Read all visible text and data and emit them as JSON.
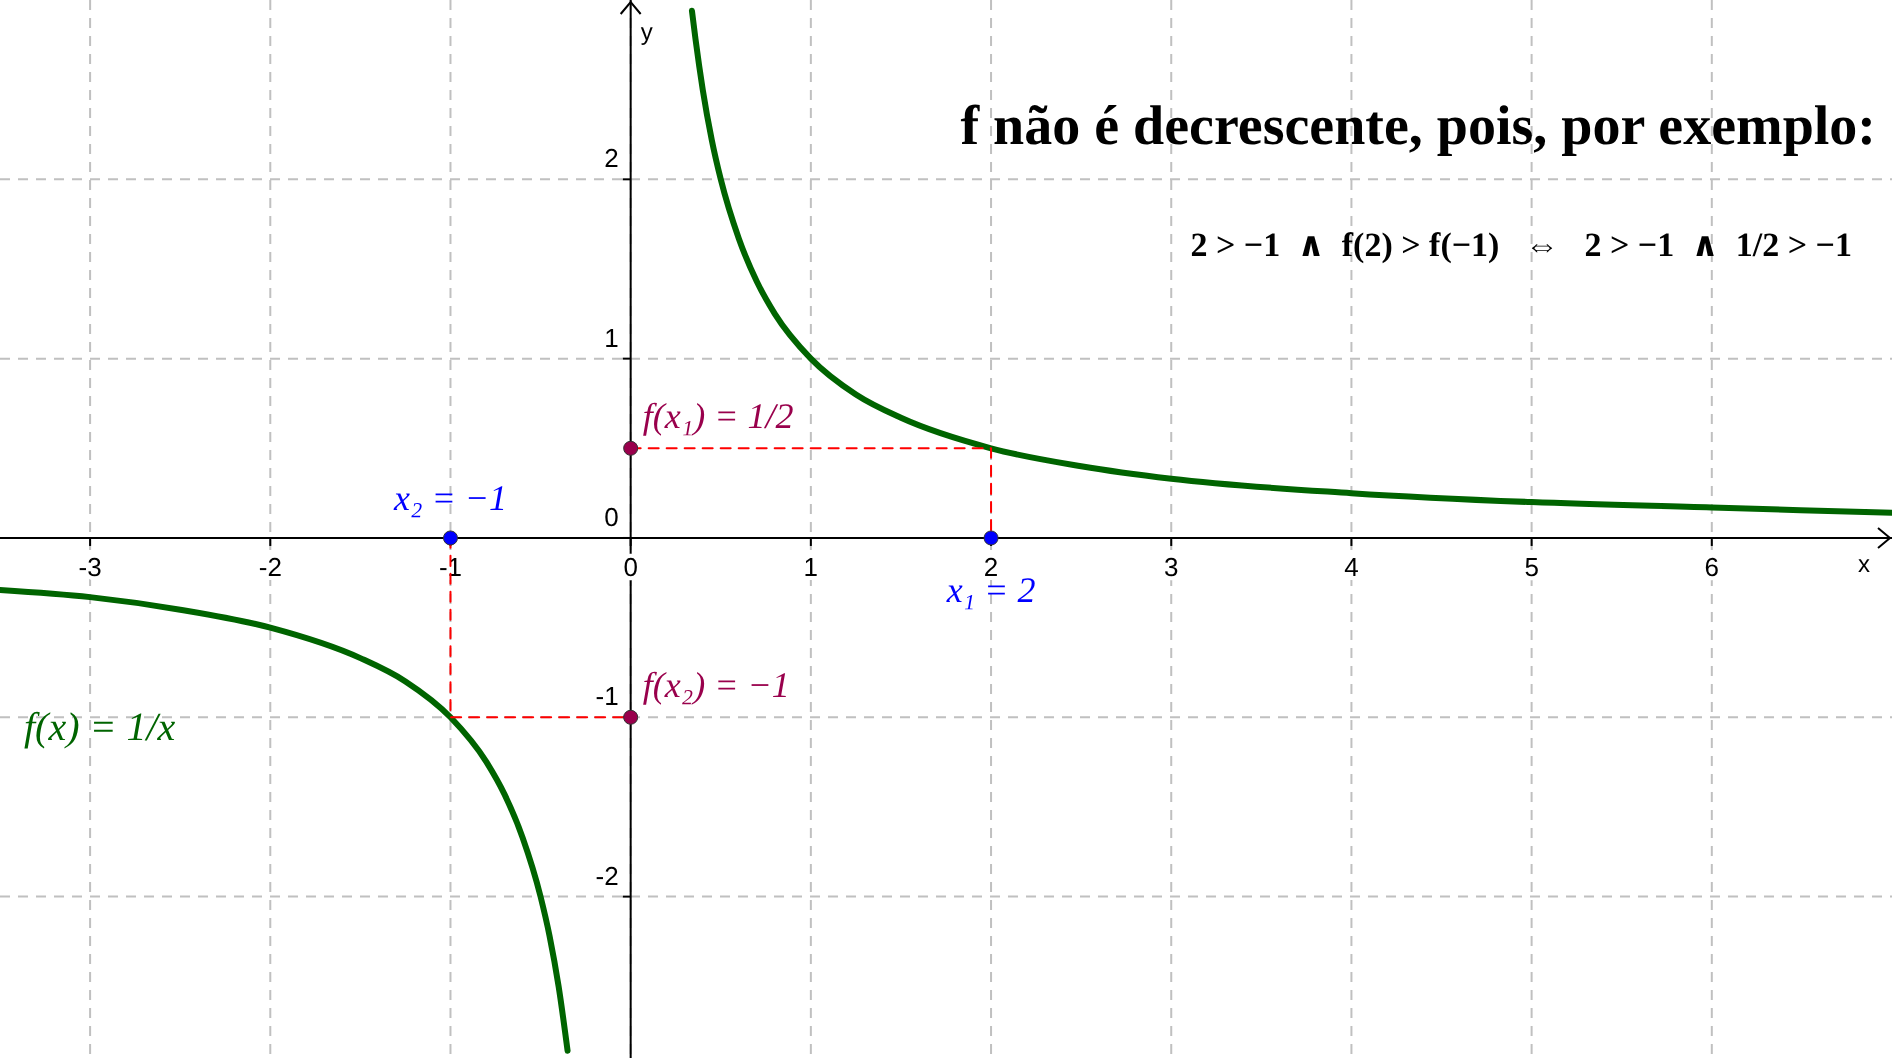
{
  "chart_data": {
    "type": "line",
    "title": "f não é decrescente, pois, por exemplo:",
    "subtitle": "2 > −1  ∧  f(2) > f(−1)   ⇔   2 > −1  ∧  1/2 > −1",
    "xlabel": "x",
    "ylabel": "y",
    "xlim": [
      -3.5,
      7
    ],
    "ylim": [
      -2.9,
      3
    ],
    "xticks": [
      -3,
      -2,
      -1,
      0,
      1,
      2,
      3,
      4,
      5,
      6
    ],
    "yticks": [
      -2,
      -1,
      0,
      1,
      2
    ],
    "grid": true,
    "series": [
      {
        "name": "f(x) = 1/x",
        "color": "#006400",
        "line_style": "solid",
        "x": [
          -3.5,
          -3,
          -2.5,
          -2,
          -1.5,
          -1.25,
          -1,
          -0.8,
          -0.7,
          -0.6,
          -0.5,
          -0.45,
          -0.4,
          -0.35,
          0,
          0.34,
          0.36,
          0.4,
          0.45,
          0.5,
          0.6,
          0.7,
          0.8,
          1,
          1.25,
          1.5,
          2,
          2.5,
          3,
          4,
          5,
          6,
          7
        ],
        "values": [
          -0.29,
          -0.33,
          -0.4,
          -0.5,
          -0.67,
          -0.8,
          -1,
          -1.25,
          -1.43,
          -1.67,
          -2,
          -2.22,
          -2.5,
          -2.86,
          null,
          2.94,
          2.78,
          2.5,
          2.22,
          2,
          1.67,
          1.43,
          1.25,
          1,
          0.8,
          0.67,
          0.5,
          0.4,
          0.33,
          0.25,
          0.2,
          0.17,
          0.14
        ]
      },
      {
        "color": "#ff0000",
        "line_style": "dashed",
        "x": [
          0,
          2,
          2
        ],
        "values": [
          0.5,
          0.5,
          0
        ]
      },
      {
        "color": "#ff0000",
        "line_style": "dashed",
        "x": [
          -1,
          -1,
          0
        ],
        "values": [
          0,
          -1,
          -1
        ]
      },
      {
        "type": "scatter",
        "color": "#0000ff",
        "marker": "circle",
        "x": [
          -1,
          2
        ],
        "values": [
          0,
          0
        ]
      },
      {
        "type": "scatter",
        "color": "#99004c",
        "marker": "circle",
        "x": [
          0,
          0
        ],
        "values": [
          0.5,
          -1
        ]
      }
    ],
    "annotations": [
      {
        "text": "x₂ = −1",
        "x": -1,
        "y": 0
      },
      {
        "text": "x₁ = 2",
        "x": 2,
        "y": 0
      },
      {
        "text": "f(x₁) = 1/2",
        "x": 0,
        "y": 0.5
      },
      {
        "text": "f(x₂) = −1",
        "x": 0,
        "y": -1
      }
    ]
  }
}
